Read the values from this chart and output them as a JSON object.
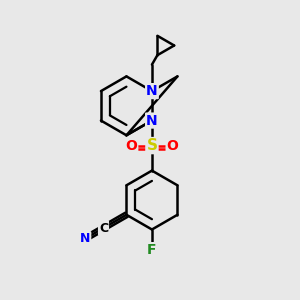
{
  "background_color": "#e8e8e8",
  "bond_color": "#000000",
  "N_color": "#0000ff",
  "O_color": "#ff0000",
  "S_color": "#cccc00",
  "F_color": "#228B22",
  "line_width": 1.8,
  "figsize": [
    3.0,
    3.0
  ],
  "dpi": 100,
  "xlim": [
    0,
    10
  ],
  "ylim": [
    0,
    10
  ]
}
